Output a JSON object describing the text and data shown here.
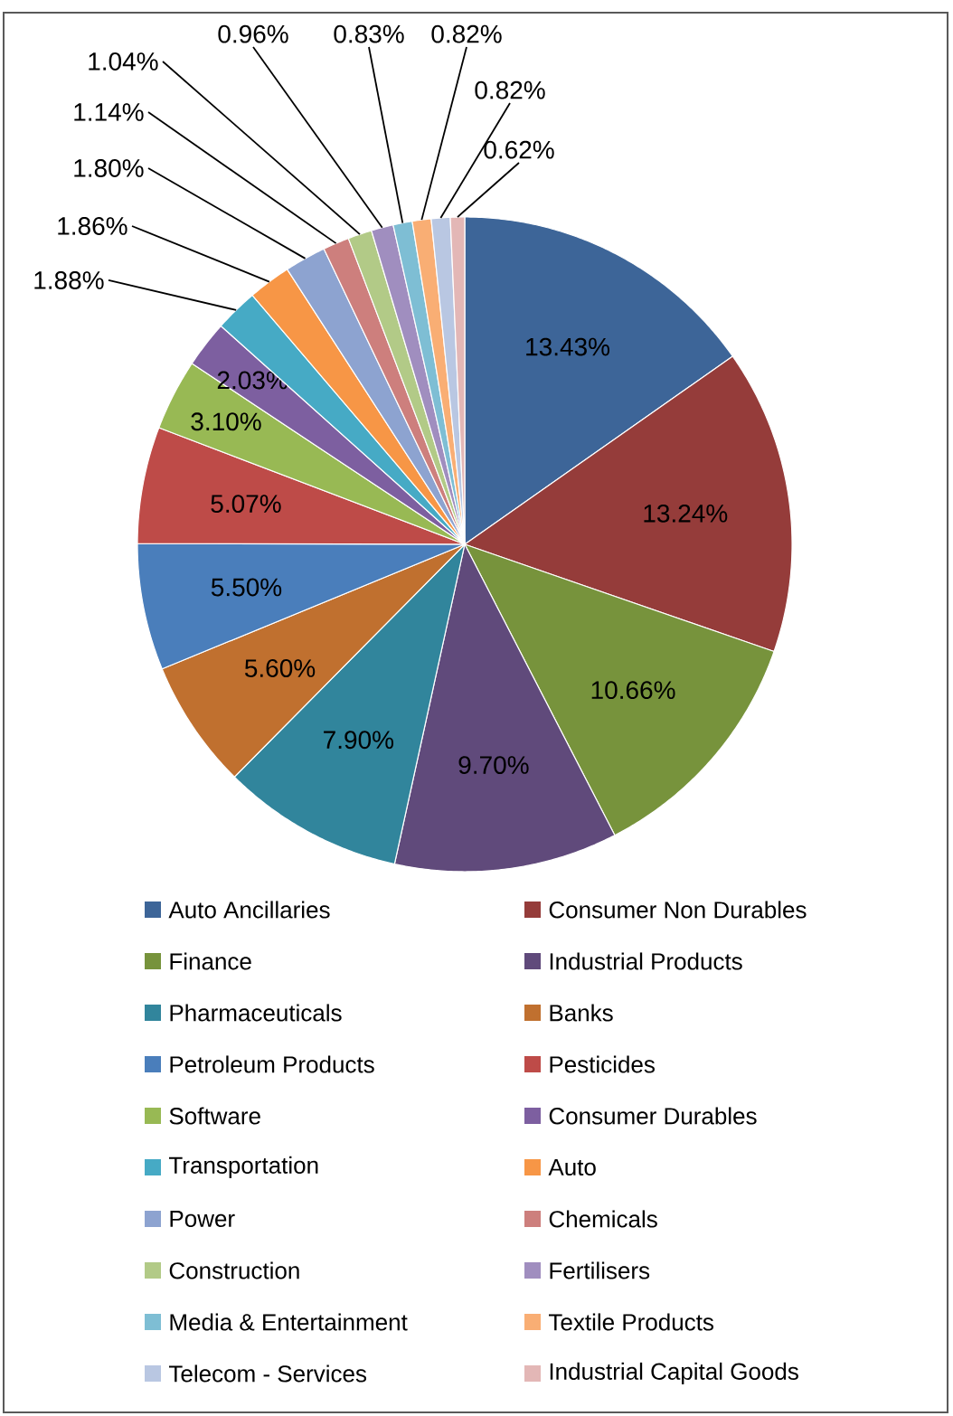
{
  "chart_data": {
    "type": "pie",
    "categories": [
      "Auto Ancillaries",
      "Consumer Non Durables",
      "Finance",
      "Industrial Products",
      "Pharmaceuticals",
      "Banks",
      "Petroleum Products",
      "Pesticides",
      "Software",
      "Consumer Durables",
      "Transportation",
      "Auto",
      "Power",
      "Chemicals",
      "Construction",
      "Fertilisers",
      "Media & Entertainment",
      "Textile Products",
      "Telecom - Services",
      "Industrial Capital Goods"
    ],
    "values": [
      13.43,
      13.24,
      10.66,
      9.7,
      7.9,
      5.6,
      5.5,
      5.07,
      3.1,
      2.03,
      1.88,
      1.86,
      1.8,
      1.14,
      1.04,
      0.96,
      0.83,
      0.82,
      0.82,
      0.62
    ],
    "value_labels": [
      "13.43%",
      "13.24%",
      "10.66%",
      "9.70%",
      "7.90%",
      "5.60%",
      "5.50%",
      "5.07%",
      "3.10%",
      "2.03%",
      "1.88%",
      "1.86%",
      "1.80%",
      "1.14%",
      "1.04%",
      "0.96%",
      "0.83%",
      "0.82%",
      "0.82%",
      "0.62%"
    ],
    "colors": [
      "#3D6598",
      "#953C3A",
      "#77933C",
      "#604A7B",
      "#31859C",
      "#C0702F",
      "#4A7EBB",
      "#BE4B48",
      "#98B954",
      "#7D5FA0",
      "#46AAC5",
      "#F79646",
      "#8DA3D0",
      "#CD7F7D",
      "#B2CA87",
      "#A08EBF",
      "#7EBED4",
      "#F9AE74",
      "#B9C7E2",
      "#E3B7B6"
    ],
    "legend": "bottom"
  }
}
